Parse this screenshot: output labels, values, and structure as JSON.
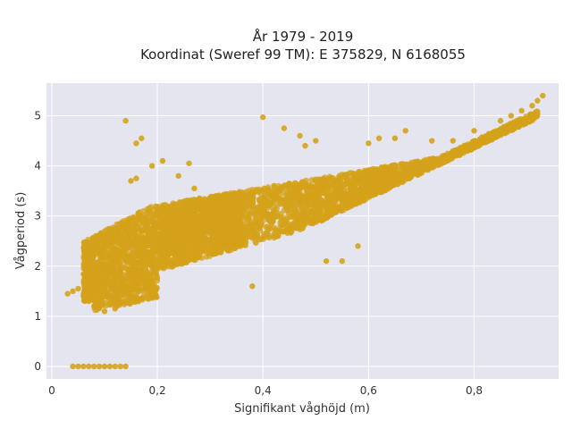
{
  "chart_data": {
    "type": "scatter",
    "title_lines": [
      "År 1979 - 2019",
      "Koordinat (Sweref 99 TM): E 375829, N 6168055"
    ],
    "xlabel": "Signifikant våghöjd (m)",
    "ylabel": "Vågperiod (s)",
    "xlim": [
      -0.01,
      0.96
    ],
    "ylim": [
      -0.25,
      5.65
    ],
    "x_ticks": [
      0,
      0.2,
      0.4,
      0.6,
      0.8
    ],
    "x_tick_labels": [
      "0",
      "0,2",
      "0,4",
      "0,6",
      "0,8"
    ],
    "y_ticks": [
      0,
      1,
      2,
      3,
      4,
      5
    ],
    "y_tick_labels": [
      "0",
      "1",
      "2",
      "3",
      "4",
      "5"
    ],
    "grid": true,
    "plot_background": "#e5e5ef",
    "marker_color": "#d4a21a",
    "series": [
      {
        "points": [
          [
            0.04,
            0.0
          ],
          [
            0.05,
            0.0
          ],
          [
            0.06,
            0.0
          ],
          [
            0.07,
            0.0
          ],
          [
            0.08,
            0.0
          ],
          [
            0.09,
            0.0
          ],
          [
            0.1,
            0.0
          ],
          [
            0.11,
            0.0
          ],
          [
            0.12,
            0.0
          ],
          [
            0.13,
            0.0
          ],
          [
            0.14,
            0.0
          ],
          [
            0.03,
            1.45
          ],
          [
            0.04,
            1.5
          ],
          [
            0.05,
            1.55
          ],
          [
            0.06,
            1.4
          ],
          [
            0.07,
            1.3
          ],
          [
            0.08,
            1.2
          ],
          [
            0.1,
            1.1
          ],
          [
            0.12,
            1.15
          ],
          [
            0.14,
            4.9
          ],
          [
            0.16,
            4.45
          ],
          [
            0.17,
            4.55
          ],
          [
            0.16,
            3.75
          ],
          [
            0.15,
            3.7
          ],
          [
            0.19,
            4.0
          ],
          [
            0.21,
            4.1
          ],
          [
            0.24,
            3.8
          ],
          [
            0.26,
            4.05
          ],
          [
            0.27,
            3.55
          ],
          [
            0.29,
            3.0
          ],
          [
            0.35,
            2.5
          ],
          [
            0.37,
            2.8
          ],
          [
            0.38,
            1.6
          ],
          [
            0.4,
            4.97
          ],
          [
            0.44,
            4.75
          ],
          [
            0.45,
            3.65
          ],
          [
            0.47,
            4.6
          ],
          [
            0.48,
            4.4
          ],
          [
            0.5,
            4.5
          ],
          [
            0.52,
            2.1
          ],
          [
            0.55,
            2.1
          ],
          [
            0.58,
            2.4
          ],
          [
            0.6,
            4.45
          ],
          [
            0.62,
            4.55
          ],
          [
            0.65,
            4.55
          ],
          [
            0.67,
            4.7
          ],
          [
            0.72,
            4.5
          ],
          [
            0.76,
            4.5
          ],
          [
            0.8,
            4.7
          ],
          [
            0.85,
            4.9
          ],
          [
            0.87,
            5.0
          ],
          [
            0.89,
            5.1
          ],
          [
            0.91,
            5.2
          ],
          [
            0.92,
            5.3
          ],
          [
            0.93,
            5.4
          ]
        ]
      }
    ]
  }
}
